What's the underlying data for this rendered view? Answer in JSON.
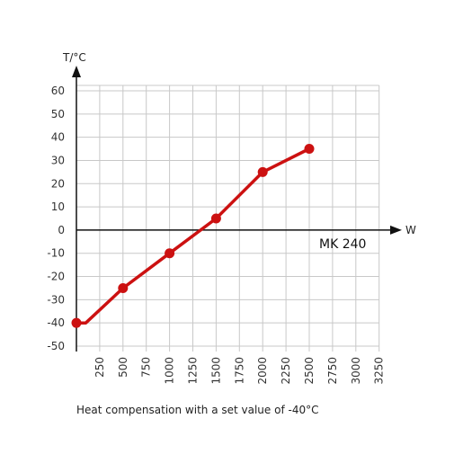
{
  "chart_data": {
    "type": "line",
    "ylabel": "T/°C",
    "xlabel": "W",
    "series_label": "MK 240",
    "caption": "Heat compensation with a set value of -40°C",
    "x_ticks": [
      250,
      500,
      750,
      1000,
      1250,
      1500,
      1750,
      2000,
      2250,
      2500,
      2750,
      3000,
      3250
    ],
    "y_ticks": [
      60,
      50,
      40,
      30,
      20,
      10,
      0,
      -10,
      -20,
      -30,
      -40,
      -50
    ],
    "xlim": [
      0,
      3250
    ],
    "ylim": [
      -50,
      60
    ],
    "grid": true,
    "colors": {
      "line": "#cc1111",
      "grid": "#c8c8c8",
      "axis": "#111111"
    },
    "series": [
      {
        "line": [
          [
            0,
            -40
          ],
          [
            100,
            -40
          ],
          [
            500,
            -25
          ],
          [
            1000,
            -10
          ],
          [
            1500,
            5
          ],
          [
            2000,
            25
          ],
          [
            2500,
            35
          ]
        ],
        "markers": [
          [
            0,
            -40
          ],
          [
            500,
            -25
          ],
          [
            1000,
            -10
          ],
          [
            1500,
            5
          ],
          [
            2000,
            25
          ],
          [
            2500,
            35
          ]
        ]
      }
    ]
  }
}
